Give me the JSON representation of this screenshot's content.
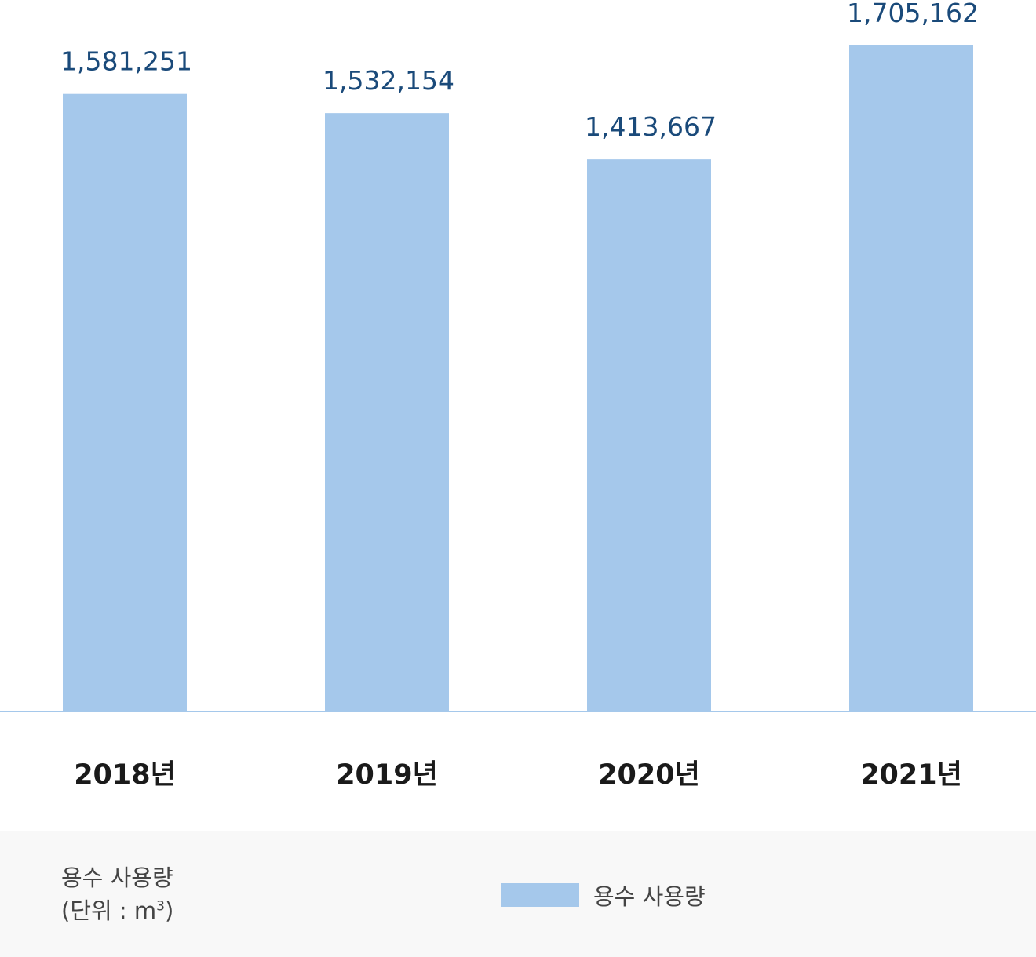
{
  "chart_data": {
    "type": "bar",
    "categories": [
      "2018년",
      "2019년",
      "2020년",
      "2021년"
    ],
    "series": [
      {
        "name": "용수 사용량",
        "values": [
          1581251,
          1532154,
          1413667,
          1705162
        ]
      }
    ],
    "value_labels": [
      "1,581,251",
      "1,532,154",
      "1,413,667",
      "1,705,162"
    ],
    "ylabel": "용수 사용량",
    "unit_prefix": "(단위 : m",
    "unit_sup": "3",
    "unit_suffix": ")",
    "ylim": [
      0,
      1705162
    ],
    "grid": false,
    "legend_position": "bottom-center",
    "colors": {
      "bar": "#a5c8eb",
      "baseline": "#a5c8eb",
      "value_label": "#1a4a7a",
      "tick_label": "#1a1a1a",
      "footer_bg": "#f8f8f8"
    }
  },
  "legend": {
    "label": "용수 사용량"
  }
}
